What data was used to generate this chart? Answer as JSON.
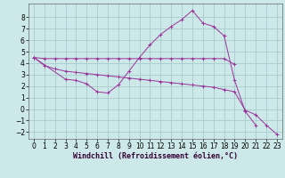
{
  "background_color": "#cce8e8",
  "grid_color": "#aacccc",
  "line_color": "#993399",
  "xlim": [
    -0.5,
    23.5
  ],
  "ylim": [
    -2.6,
    9.2
  ],
  "yticks": [
    -2,
    -1,
    0,
    1,
    2,
    3,
    4,
    5,
    6,
    7,
    8
  ],
  "xticks": [
    0,
    1,
    2,
    3,
    4,
    5,
    6,
    7,
    8,
    9,
    10,
    11,
    12,
    13,
    14,
    15,
    16,
    17,
    18,
    19,
    20,
    21,
    22,
    23
  ],
  "xlabel": "Windchill (Refroidissement éolien,°C)",
  "series": [
    {
      "x": [
        0,
        1,
        2,
        3,
        4,
        5,
        6,
        7,
        8,
        9,
        10,
        11,
        12,
        13,
        14,
        15,
        16,
        17,
        18,
        19
      ],
      "y": [
        4.5,
        4.4,
        4.4,
        4.4,
        4.4,
        4.4,
        4.4,
        4.4,
        4.4,
        4.4,
        4.4,
        4.4,
        4.4,
        4.4,
        4.4,
        4.4,
        4.4,
        4.4,
        4.4,
        3.9
      ],
      "marker": "+"
    },
    {
      "x": [
        0,
        1,
        2,
        3,
        4,
        5,
        6,
        7,
        8,
        9,
        10,
        11,
        12,
        13,
        14,
        15,
        16,
        17,
        18,
        19,
        20,
        21,
        22,
        23
      ],
      "y": [
        4.5,
        3.8,
        3.5,
        3.3,
        3.2,
        3.1,
        3.0,
        2.9,
        2.8,
        2.7,
        2.6,
        2.5,
        2.4,
        2.3,
        2.2,
        2.1,
        2.0,
        1.9,
        1.7,
        1.5,
        -0.1,
        -0.5,
        -1.4,
        -2.2
      ],
      "marker": "+"
    },
    {
      "x": [
        0,
        3,
        4,
        5,
        6,
        7,
        8,
        9,
        10,
        11,
        12,
        13,
        14,
        15,
        16,
        17,
        18,
        19,
        20,
        21,
        22,
        23
      ],
      "y": [
        4.5,
        2.6,
        2.5,
        2.2,
        1.5,
        1.4,
        2.1,
        3.3,
        4.5,
        5.6,
        6.5,
        7.2,
        7.8,
        8.6,
        7.5,
        7.2,
        6.4,
        2.5,
        -0.2,
        -1.4,
        null,
        null
      ],
      "marker": "+"
    }
  ],
  "tick_fontsize": 5.5,
  "axis_fontsize": 6.0
}
